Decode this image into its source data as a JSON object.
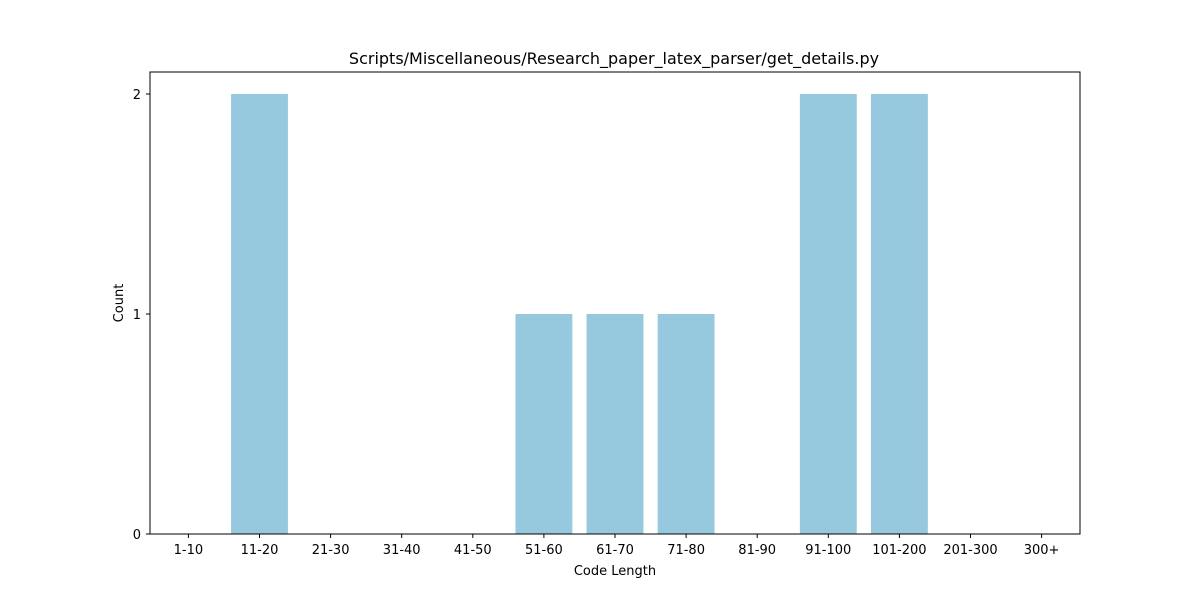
{
  "chart_data": {
    "type": "bar",
    "title": "Scripts/Miscellaneous/Research_paper_latex_parser/get_details.py",
    "xlabel": "Code Length",
    "ylabel": "Count",
    "categories": [
      "1-10",
      "11-20",
      "21-30",
      "31-40",
      "41-50",
      "51-60",
      "61-70",
      "71-80",
      "81-90",
      "91-100",
      "101-200",
      "201-300",
      "300+"
    ],
    "values": [
      0,
      2,
      0,
      0,
      0,
      1,
      1,
      1,
      0,
      2,
      2,
      0,
      0
    ],
    "yticks": [
      "0",
      "1",
      "2"
    ],
    "ylim": [
      0,
      2.1
    ],
    "bar_color": "#96c9dd",
    "grid": false,
    "legend": false
  }
}
